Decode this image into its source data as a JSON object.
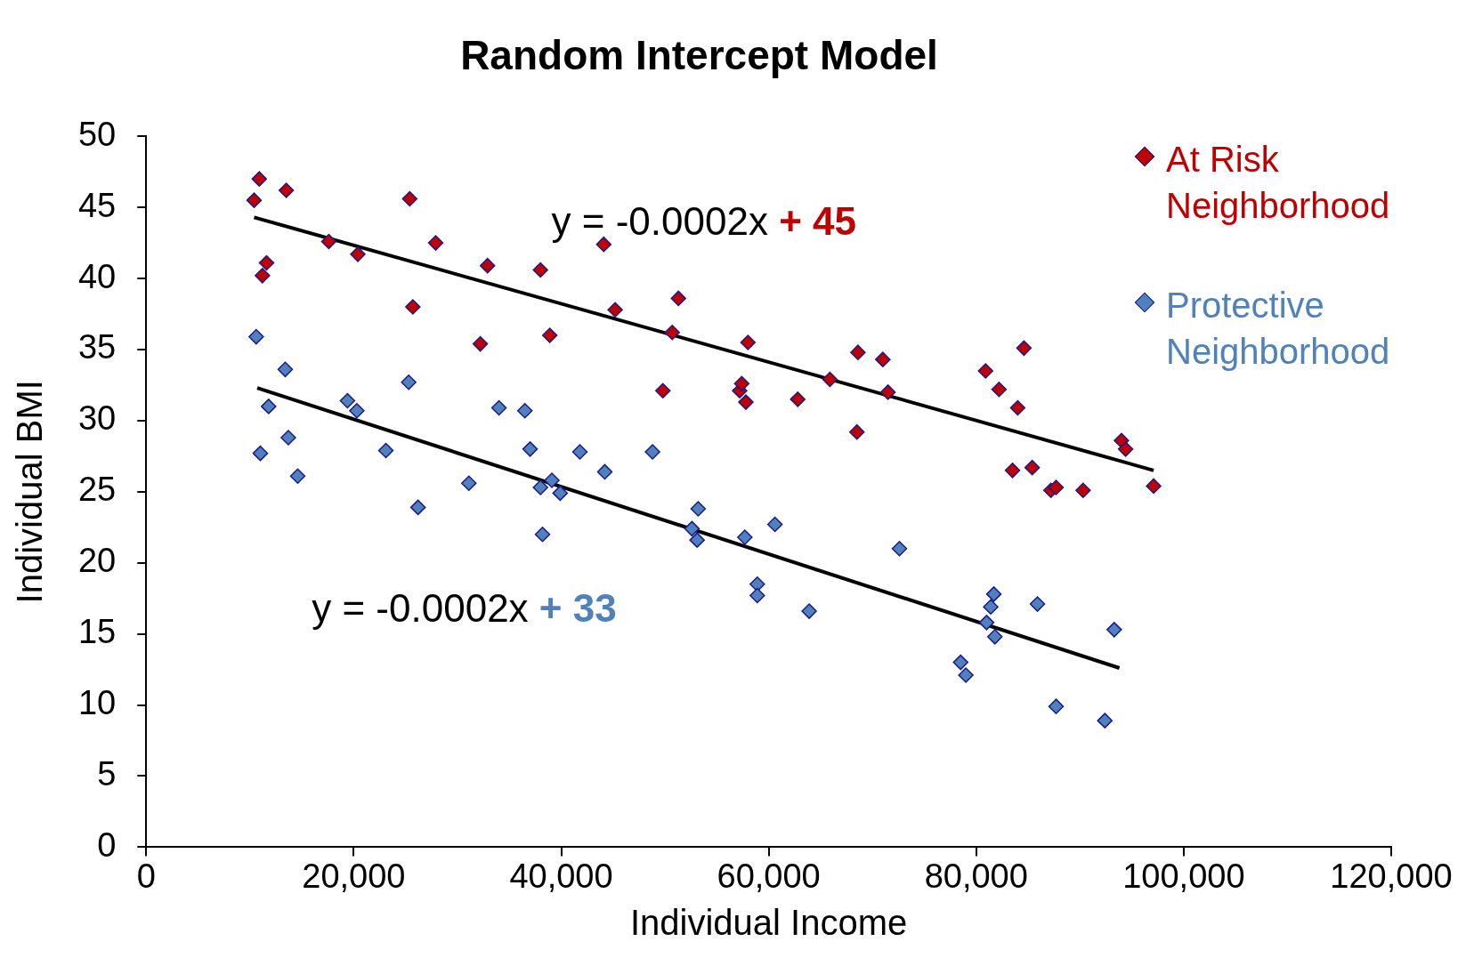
{
  "chart_data": {
    "type": "scatter",
    "title": "Random Intercept Model",
    "xlabel": "Individual Income",
    "ylabel": "Individual BMI",
    "xlim": [
      0,
      120000
    ],
    "xticks": [
      {
        "value": 0,
        "label": "0"
      },
      {
        "value": 20000,
        "label": "20,000"
      },
      {
        "value": 40000,
        "label": "40,000"
      },
      {
        "value": 60000,
        "label": "60,000"
      },
      {
        "value": 80000,
        "label": "80,000"
      },
      {
        "value": 100000,
        "label": "100,000"
      },
      {
        "value": 120000,
        "label": "120,000"
      }
    ],
    "ylim": [
      0,
      50
    ],
    "yticks": [
      0,
      5,
      10,
      15,
      20,
      25,
      30,
      35,
      40,
      45,
      50
    ],
    "grid": false,
    "legend": "top right",
    "marker": "diamond",
    "annotations": [
      "y = -0.0002x + 45",
      "y = -0.0002x + 33"
    ],
    "series": [
      {
        "name": "At Risk Neighborhood",
        "color": "#c00000",
        "x": [
          10400,
          10900,
          13500,
          11600,
          11200,
          17600,
          20400,
          25400,
          25700,
          27900,
          32200,
          32900,
          38000,
          38900,
          44100,
          45200,
          49800,
          50700,
          51300,
          57200,
          57400,
          57800,
          58000,
          62800,
          65900,
          68500,
          68600,
          71000,
          71500,
          80900,
          82200,
          84000,
          83500,
          84600,
          85400,
          87200,
          87700,
          90300,
          94000,
          94400,
          97100
        ],
        "values": [
          45.5,
          47.0,
          46.2,
          41.1,
          40.2,
          42.6,
          41.7,
          45.6,
          38.0,
          42.5,
          35.4,
          40.9,
          40.6,
          36.0,
          42.4,
          37.8,
          32.1,
          36.2,
          38.6,
          32.1,
          32.6,
          31.3,
          35.5,
          31.5,
          32.9,
          29.2,
          34.8,
          34.3,
          32.0,
          33.5,
          32.2,
          30.9,
          26.5,
          35.1,
          26.7,
          25.1,
          25.3,
          25.1,
          28.6,
          28.0,
          25.4
        ]
      },
      {
        "name": "Protective Neighborhood",
        "color": "#4f81bd",
        "x": [
          10600,
          11000,
          11800,
          13400,
          13700,
          14600,
          19400,
          20300,
          23100,
          25300,
          26200,
          31100,
          34000,
          36500,
          37000,
          38000,
          38200,
          39100,
          39900,
          41800,
          44200,
          48800,
          52600,
          53100,
          53200,
          57700,
          58900,
          58900,
          60600,
          63900,
          72600,
          78500,
          79000,
          81000,
          81400,
          81700,
          81800,
          85900,
          87700,
          92400,
          93300
        ],
        "values": [
          35.9,
          27.7,
          31.0,
          33.6,
          28.8,
          26.1,
          31.4,
          30.7,
          27.9,
          32.7,
          23.9,
          25.6,
          30.9,
          30.7,
          28.0,
          25.3,
          22.0,
          25.8,
          24.9,
          27.8,
          26.4,
          27.8,
          22.4,
          21.6,
          23.8,
          21.8,
          18.5,
          17.7,
          22.7,
          16.6,
          21.0,
          13.0,
          12.1,
          15.8,
          16.9,
          17.8,
          14.8,
          17.1,
          9.9,
          8.9,
          15.3
        ]
      },
      {
        "type": "line",
        "marker": "none",
        "color": "#000000",
        "x": [
          10400,
          97100
        ],
        "values": [
          44.3,
          26.5
        ]
      },
      {
        "type": "line",
        "marker": "none",
        "color": "#000000",
        "x": [
          10700,
          93800
        ],
        "values": [
          32.3,
          12.6
        ]
      }
    ]
  }
}
